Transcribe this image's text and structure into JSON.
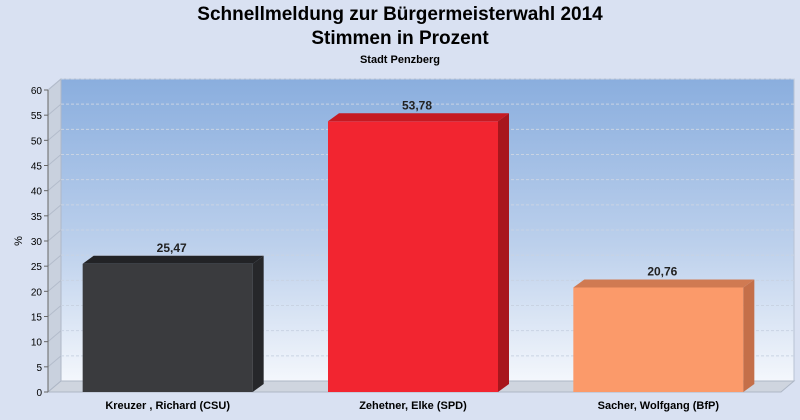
{
  "chart_data": {
    "type": "bar",
    "title": "Schnellmeldung zur Bürgermeisterwahl 2014",
    "title_line2": "Stimmen in Prozent",
    "subtitle": "Stadt Penzberg",
    "ylabel": "%",
    "xlabel": "",
    "ylim": [
      0,
      60
    ],
    "yticks": [
      0,
      5,
      10,
      15,
      20,
      25,
      30,
      35,
      40,
      45,
      50,
      55,
      60
    ],
    "grid": true,
    "categories": [
      "Kreuzer , Richard (CSU)",
      "Zehetner, Elke (SPD)",
      "Sacher, Wolfgang (BfP)"
    ],
    "values": [
      25.47,
      53.78,
      20.76
    ],
    "value_labels": [
      "25,47",
      "53,78",
      "20,76"
    ],
    "colors": [
      "#3a3b3e",
      "#f22530",
      "#fb9a6a"
    ],
    "side_colors": [
      "#26272a",
      "#a8161d",
      "#c46f49"
    ],
    "top_colors": [
      "#222326",
      "#c61a22",
      "#d07a52"
    ]
  }
}
